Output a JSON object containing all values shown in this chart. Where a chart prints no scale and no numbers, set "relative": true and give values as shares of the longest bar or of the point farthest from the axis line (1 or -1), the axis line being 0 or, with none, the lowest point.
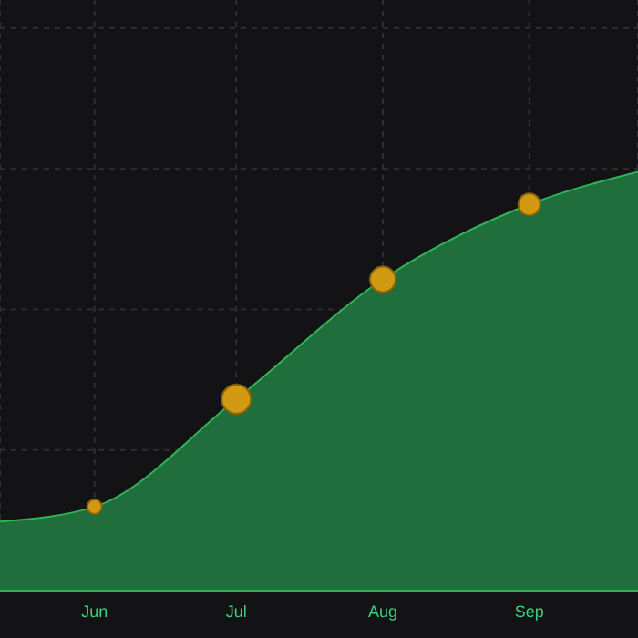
{
  "chart_data": {
    "type": "area",
    "relative": true,
    "grid": true,
    "xlim": [
      "--05-12",
      "--09-24"
    ],
    "xticks": [
      {
        "value": "--06-01",
        "label": "Jun"
      },
      {
        "value": "--07-01",
        "label": "Jul"
      },
      {
        "value": "--08-01",
        "label": "Aug"
      },
      {
        "value": "--09-01",
        "label": "Sep"
      }
    ],
    "series": [
      {
        "color": "#1f6e3b",
        "x": [
          "--05-12",
          "--06-01",
          "--07-01",
          "--08-01",
          "--09-01",
          "--09-24"
        ],
        "values": [
          0.165,
          0.2,
          0.457,
          0.743,
          0.922,
          1
        ]
      },
      {
        "type": "bubble",
        "color": "#d19a12",
        "x": [
          "--06-01",
          "--07-01",
          "--08-01",
          "--09-01"
        ],
        "values": [
          0.2,
          0.457,
          0.743,
          0.922
        ],
        "sizes": [
          0.25,
          1,
          0.77,
          0.56
        ]
      }
    ]
  }
}
